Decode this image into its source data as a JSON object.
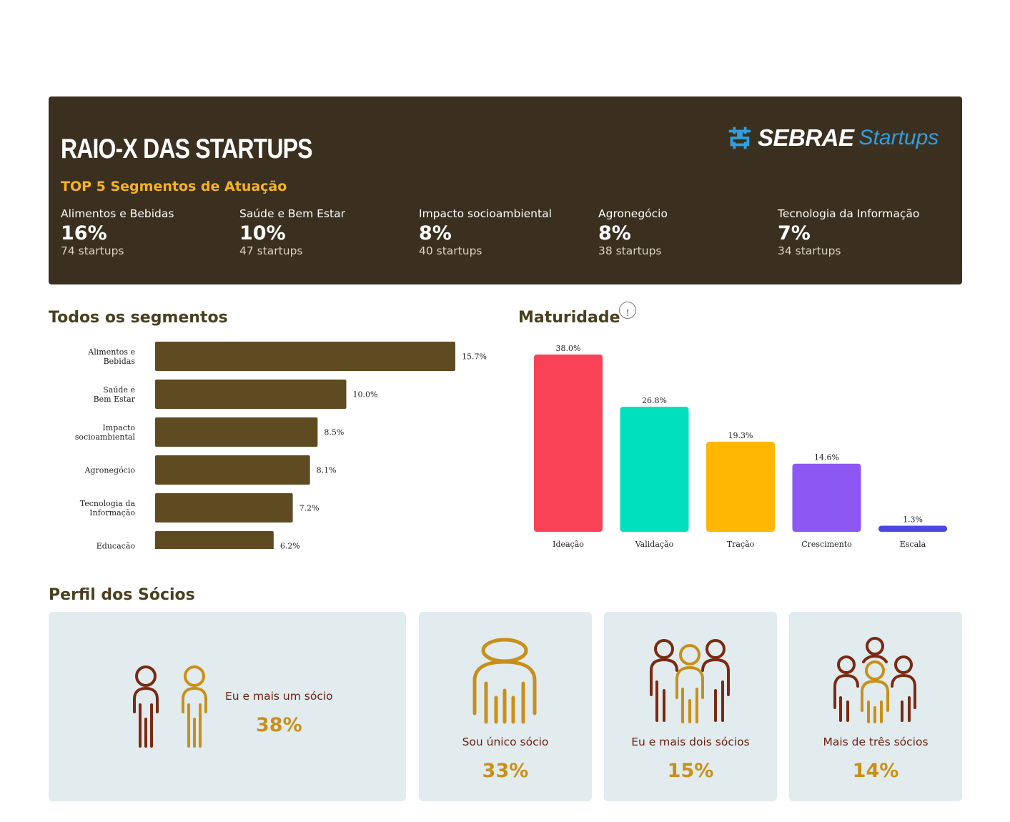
{
  "header": {
    "title": "RAIO-X DAS STARTUPS",
    "subtitle": "TOP 5 Segmentos de Atuação",
    "logo_brand": "SEBRAE",
    "logo_sub": "Startups",
    "kpis": [
      {
        "label": "Alimentos e Bebidas",
        "pct": "16%",
        "count": "74 startups"
      },
      {
        "label": "Saúde e Bem Estar",
        "pct": "10%",
        "count": "47 startups"
      },
      {
        "label": "Impacto socioambiental",
        "pct": "8%",
        "count": "40 startups"
      },
      {
        "label": "Agronegócio",
        "pct": "8%",
        "count": "38 startups"
      },
      {
        "label": "Tecnologia da Informação",
        "pct": "7%",
        "count": "34 startups"
      }
    ]
  },
  "segments_section": {
    "title": "Todos os segmentos"
  },
  "maturity_section": {
    "title": "Maturidade",
    "info_icon": "!"
  },
  "chart_data": [
    {
      "type": "bar",
      "orientation": "horizontal",
      "categories": [
        [
          "Alimentos e",
          "Bebidas"
        ],
        [
          "Saúde e",
          "Bem Estar"
        ],
        [
          "Impacto",
          "socioambiental"
        ],
        [
          "Agronegócio"
        ],
        [
          "Tecnologia da",
          "Informação"
        ],
        [
          "Educação"
        ]
      ],
      "values": [
        15.7,
        10.0,
        8.5,
        8.1,
        7.2,
        6.2
      ],
      "value_labels": [
        "15.7%",
        "10.0%",
        "8.5%",
        "8.1%",
        "7.2%",
        "6.2%"
      ],
      "color": "#5f4b22",
      "xlim": [
        0,
        16
      ]
    },
    {
      "type": "bar",
      "orientation": "vertical",
      "categories": [
        "Ideação",
        "Validação",
        "Tração",
        "Crescimento",
        "Escala"
      ],
      "values": [
        38.0,
        26.8,
        19.3,
        14.6,
        1.3
      ],
      "value_labels": [
        "38.0%",
        "26.8%",
        "19.3%",
        "14.6%",
        "1.3%"
      ],
      "colors": [
        "#fa4257",
        "#00e0bf",
        "#ffb703",
        "#8b58f3",
        "#4c47e0"
      ],
      "ylim": [
        0,
        38
      ]
    }
  ],
  "partners": {
    "title": "Perfil dos Sócios",
    "cards": [
      {
        "label": "Eu e mais um sócio",
        "pct": "38%",
        "icon": "two-people-icon"
      },
      {
        "label": "Sou único sócio",
        "pct": "33%",
        "icon": "single-person-icon"
      },
      {
        "label": "Eu e mais dois sócios",
        "pct": "15%",
        "icon": "three-people-icon"
      },
      {
        "label": "Mais de três sócios",
        "pct": "14%",
        "icon": "group-people-icon"
      }
    ]
  },
  "colors": {
    "dark_panel": "#3b3020",
    "accent": "#f5b321",
    "brown": "#6b1f12",
    "gold": "#c8901a",
    "card_bg": "#e2ebee"
  }
}
